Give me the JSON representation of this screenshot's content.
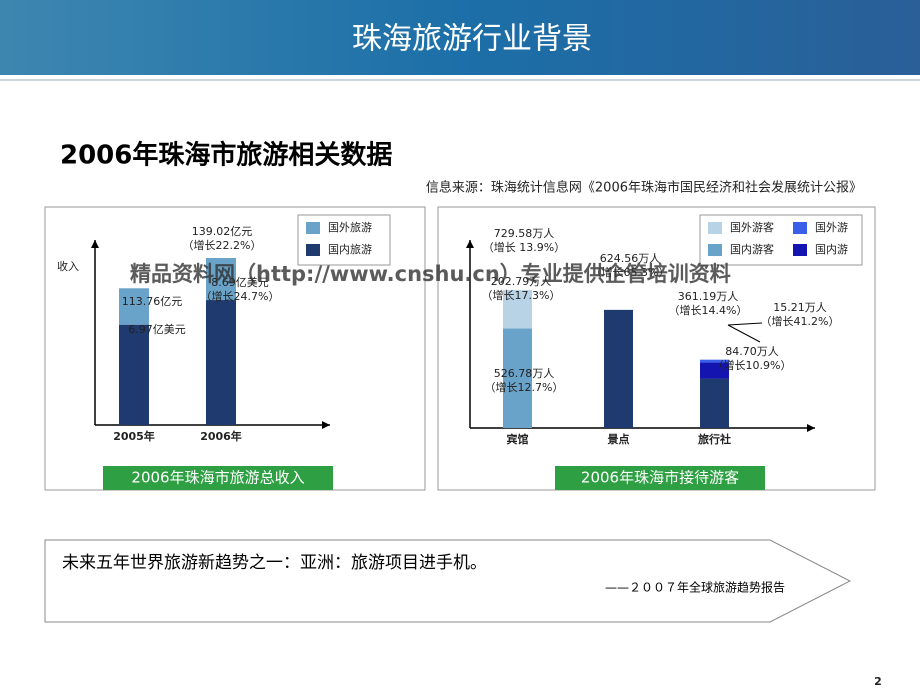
{
  "header": {
    "title": "珠海旅游行业背景"
  },
  "heading": "2006年珠海市旅游相关数据",
  "source": "信息来源：珠海统计信息网《2006年珠海市国民经济和社会发展统计公报》",
  "watermark": "精品资料网（http://www.cnshu.cn）专业提供企管培训资料",
  "chart_data": [
    {
      "type": "bar",
      "stacked": true,
      "y_label": "收入",
      "caption": "2006年珠海市旅游总收入",
      "categories": [
        "2005年",
        "2006年"
      ],
      "series": [
        {
          "name": "国外旅游",
          "color": "#6aa3c9",
          "values": [
            30.3,
            35
          ]
        },
        {
          "name": "国内旅游",
          "color": "#1f3a6e",
          "values": [
            83.5,
            104
          ]
        }
      ],
      "annotations": [
        {
          "text": "139.02亿元",
          "sub": "（增长22.2%）"
        },
        {
          "text": "113.76亿元"
        },
        {
          "text": "6.97亿美元"
        },
        {
          "text": "8.69亿美元",
          "sub": "（增长24.7%）"
        }
      ]
    },
    {
      "type": "bar",
      "stacked": true,
      "caption": "2006年珠海市接待游客",
      "categories": [
        "宾馆",
        "景点",
        "旅行社"
      ],
      "series": [
        {
          "name": "国外游客",
          "color": "#b9d3e6",
          "values": [
            202.8,
            null,
            null
          ]
        },
        {
          "name": "国内游客",
          "color": "#6aa3c9",
          "values": [
            526.78,
            null,
            null
          ]
        },
        {
          "name": "国外游",
          "color": "#3a5fe8",
          "values": [
            null,
            null,
            15.21
          ]
        },
        {
          "name": "国内游",
          "color": "#1414b0",
          "values": [
            null,
            null,
            84.7
          ]
        },
        {
          "color": "#1f3a6e",
          "values": [
            null,
            624.56,
            261.28
          ]
        }
      ],
      "annotations": [
        {
          "text": "729.58万人",
          "sub": "（增长 13.9%）"
        },
        {
          "text": "624.56万人",
          "sub": "（增长65.3%）"
        },
        {
          "text": "361.19万人",
          "sub": "（增长14.4%）"
        },
        {
          "text": "202.79万人",
          "sub": "（增长17.3%）"
        },
        {
          "text": "526.78万人",
          "sub": "（增长12.7%）"
        },
        {
          "text": "15.21万人",
          "sub": "（增长41.2%）"
        },
        {
          "text": "84.70万人",
          "sub": "（增长10.9%）"
        }
      ]
    }
  ],
  "callout": {
    "text": "未来五年世界旅游新趋势之一：亚洲：旅游项目进手机。",
    "cite": "——２００７年全球旅游趋势报告"
  },
  "page_number": "2"
}
